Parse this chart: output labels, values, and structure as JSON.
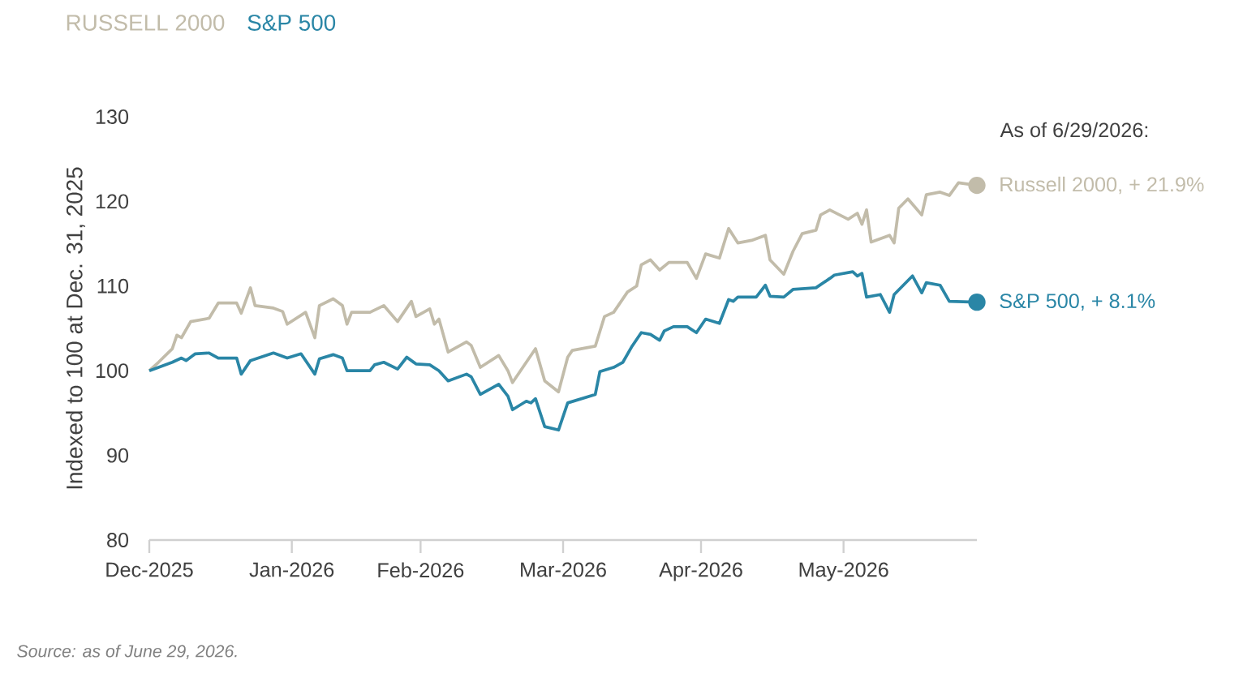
{
  "chart_data": {
    "type": "line",
    "ylabel": "Indexed to 100 at Dec. 31, 2025",
    "xlim": [
      "2025-12-31",
      "2026-06-29"
    ],
    "xticks": [
      {
        "value": "2025-12-31",
        "label": "Dec-2025"
      },
      {
        "value": "2026-01-31",
        "label": "Jan-2026"
      },
      {
        "value": "2026-02-28",
        "label": "Feb-2026"
      },
      {
        "value": "2026-03-31",
        "label": "Mar-2026"
      },
      {
        "value": "2026-04-30",
        "label": "Apr-2026"
      },
      {
        "value": "2026-05-31",
        "label": "May-2026"
      }
    ],
    "ylim": [
      80,
      130
    ],
    "yticks": [
      80,
      90,
      100,
      110,
      120,
      130
    ],
    "legend": "top",
    "line_style": "solid",
    "series": [
      {
        "name": "RUSSELL 2000",
        "color": "#c2bcaa",
        "x": [
          "2025-12-31",
          "2026-01-02",
          "2026-01-05",
          "2026-01-06",
          "2026-01-07",
          "2026-01-09",
          "2026-01-13",
          "2026-01-15",
          "2026-01-19",
          "2026-01-20",
          "2026-01-22",
          "2026-01-23",
          "2026-01-27",
          "2026-01-29",
          "2026-01-30",
          "2026-02-03",
          "2026-02-05",
          "2026-02-06",
          "2026-02-09",
          "2026-02-11",
          "2026-02-12",
          "2026-02-13",
          "2026-02-17",
          "2026-02-20",
          "2026-02-23",
          "2026-02-26",
          "2026-02-27",
          "2026-03-02",
          "2026-03-03",
          "2026-03-04",
          "2026-03-06",
          "2026-03-10",
          "2026-03-11",
          "2026-03-13",
          "2026-03-17",
          "2026-03-19",
          "2026-03-20",
          "2026-03-25",
          "2026-03-27",
          "2026-03-30",
          "2026-04-01",
          "2026-04-02",
          "2026-04-07",
          "2026-04-09",
          "2026-04-11",
          "2026-04-14",
          "2026-04-16",
          "2026-04-17",
          "2026-04-19",
          "2026-04-21",
          "2026-04-23",
          "2026-04-27",
          "2026-04-29",
          "2026-05-01",
          "2026-05-04",
          "2026-05-06",
          "2026-05-08",
          "2026-05-11",
          "2026-05-14",
          "2026-05-15",
          "2026-05-18",
          "2026-05-20",
          "2026-05-22",
          "2026-05-25",
          "2026-05-26",
          "2026-05-28",
          "2026-06-01",
          "2026-06-03",
          "2026-06-04",
          "2026-06-05",
          "2026-06-06",
          "2026-06-10",
          "2026-06-11",
          "2026-06-12",
          "2026-06-14",
          "2026-06-17",
          "2026-06-18",
          "2026-06-21",
          "2026-06-23",
          "2026-06-25",
          "2026-06-29"
        ],
        "values": [
          100,
          101.0,
          102.6,
          104.2,
          103.9,
          105.8,
          106.2,
          108.0,
          108.0,
          106.8,
          109.8,
          107.7,
          107.4,
          107.0,
          105.5,
          106.9,
          103.9,
          107.7,
          108.5,
          107.7,
          105.5,
          106.9,
          106.9,
          107.7,
          105.8,
          108.2,
          106.4,
          107.3,
          105.5,
          106.1,
          102.2,
          103.4,
          103.0,
          100.4,
          101.8,
          100.0,
          98.6,
          102.6,
          98.8,
          97.5,
          101.6,
          102.4,
          102.9,
          106.4,
          106.9,
          109.3,
          110.0,
          112.5,
          113.1,
          111.9,
          112.8,
          112.8,
          110.9,
          113.8,
          113.3,
          116.8,
          115.1,
          115.4,
          116.0,
          113.1,
          111.4,
          114.1,
          116.2,
          116.6,
          118.4,
          119.0,
          117.9,
          118.6,
          117.3,
          119.0,
          115.2,
          116.0,
          115.1,
          119.2,
          120.3,
          118.4,
          120.8,
          121.1,
          120.7,
          122.2,
          121.9
        ]
      },
      {
        "name": "S&P 500",
        "color": "#2a86a6",
        "x": [
          "2025-12-31",
          "2026-01-05",
          "2026-01-07",
          "2026-01-08",
          "2026-01-10",
          "2026-01-13",
          "2026-01-15",
          "2026-01-19",
          "2026-01-20",
          "2026-01-22",
          "2026-01-27",
          "2026-01-30",
          "2026-02-02",
          "2026-02-05",
          "2026-02-06",
          "2026-02-09",
          "2026-02-11",
          "2026-02-12",
          "2026-02-17",
          "2026-02-18",
          "2026-02-20",
          "2026-02-23",
          "2026-02-25",
          "2026-02-27",
          "2026-03-02",
          "2026-03-04",
          "2026-03-06",
          "2026-03-10",
          "2026-03-11",
          "2026-03-13",
          "2026-03-17",
          "2026-03-19",
          "2026-03-20",
          "2026-03-23",
          "2026-03-24",
          "2026-03-25",
          "2026-03-27",
          "2026-03-30",
          "2026-04-01",
          "2026-04-07",
          "2026-04-08",
          "2026-04-11",
          "2026-04-13",
          "2026-04-15",
          "2026-04-17",
          "2026-04-19",
          "2026-04-21",
          "2026-04-22",
          "2026-04-24",
          "2026-04-27",
          "2026-04-29",
          "2026-05-01",
          "2026-05-04",
          "2026-05-06",
          "2026-05-07",
          "2026-05-08",
          "2026-05-12",
          "2026-05-14",
          "2026-05-15",
          "2026-05-18",
          "2026-05-20",
          "2026-05-25",
          "2026-05-28",
          "2026-05-29",
          "2026-06-02",
          "2026-06-03",
          "2026-06-04",
          "2026-06-05",
          "2026-06-08",
          "2026-06-10",
          "2026-06-11",
          "2026-06-15",
          "2026-06-17",
          "2026-06-18",
          "2026-06-21",
          "2026-06-23",
          "2026-06-29"
        ],
        "values": [
          100,
          101.0,
          101.5,
          101.2,
          102.0,
          102.1,
          101.5,
          101.5,
          99.6,
          101.2,
          102.1,
          101.5,
          102.0,
          99.6,
          101.4,
          101.9,
          101.5,
          100.0,
          100.0,
          100.7,
          101.0,
          100.2,
          101.6,
          100.8,
          100.7,
          100.0,
          98.8,
          99.6,
          99.3,
          97.2,
          98.4,
          97.0,
          95.4,
          96.4,
          96.2,
          96.7,
          93.4,
          93.0,
          96.2,
          97.2,
          99.9,
          100.4,
          101.0,
          102.9,
          104.5,
          104.3,
          103.6,
          104.7,
          105.2,
          105.2,
          104.5,
          106.1,
          105.6,
          108.4,
          108.2,
          108.7,
          108.7,
          110.1,
          108.8,
          108.7,
          109.6,
          109.8,
          110.9,
          111.3,
          111.7,
          111.2,
          111.5,
          108.7,
          109.0,
          106.9,
          109.0,
          111.2,
          109.2,
          110.4,
          110.1,
          108.2,
          108.1
        ]
      }
    ],
    "annotations": [
      "As of 6/29/2026:",
      {
        "text": "Russell 2000, + 21.9%",
        "x": "2026-06-29",
        "y": 121.9
      },
      {
        "text": "S&P 500, + 8.1%",
        "x": "2026-06-29",
        "y": 108.1
      },
      "Source: as of June 29, 2026."
    ]
  }
}
